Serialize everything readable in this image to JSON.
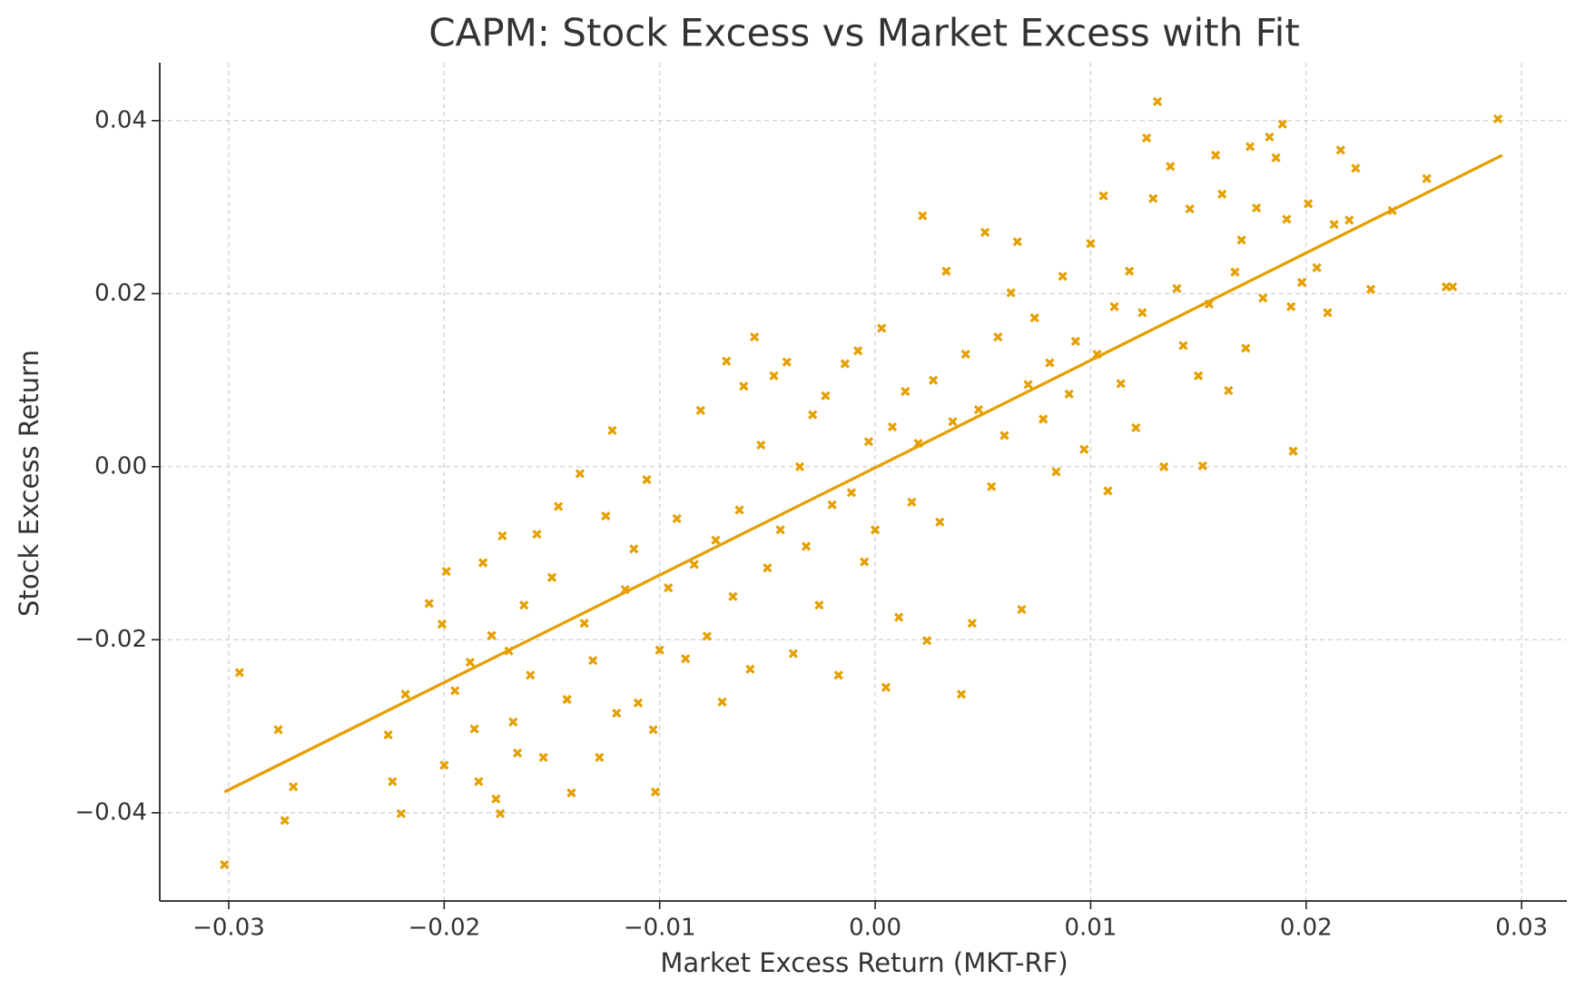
{
  "chart_data": {
    "type": "scatter",
    "title": "CAPM: Stock Excess vs Market Excess with Fit",
    "x_label": "Market Excess Return (MKT-RF)",
    "y_label": "Stock Excess Return",
    "xlim": [
      -0.0332,
      0.0321
    ],
    "ylim": [
      -0.0502,
      0.0467
    ],
    "xticks": [
      {
        "value": -0.03,
        "label": "−0.03"
      },
      {
        "value": -0.02,
        "label": "−0.02"
      },
      {
        "value": -0.01,
        "label": "−0.01"
      },
      {
        "value": 0,
        "label": "0.00"
      },
      0.01,
      0.02,
      0.03
    ],
    "yticks": [
      {
        "value": -0.04,
        "label": "−0.04"
      },
      {
        "value": -0.02,
        "label": "−0.02"
      },
      {
        "value": 0,
        "label": "0.00"
      },
      0.02,
      0.04
    ],
    "grid": true,
    "series": [
      {
        "color": "#e69f00",
        "marker": "x",
        "x": [
          -0.0302,
          -0.0295,
          -0.0277,
          -0.0274,
          -0.027,
          -0.0226,
          -0.0224,
          -0.022,
          -0.0218,
          -0.0207,
          -0.02,
          -0.0199,
          -0.0201,
          -0.0195,
          -0.0188,
          -0.0186,
          -0.0184,
          -0.0182,
          -0.0178,
          -0.0176,
          -0.0174,
          -0.0173,
          -0.017,
          -0.0168,
          -0.0166,
          -0.0163,
          -0.016,
          -0.0157,
          -0.0154,
          -0.015,
          -0.0147,
          -0.0143,
          -0.0141,
          -0.0137,
          -0.0135,
          -0.0131,
          -0.0128,
          -0.0125,
          -0.0122,
          -0.012,
          -0.0116,
          -0.0112,
          -0.011,
          -0.0106,
          -0.0103,
          -0.0102,
          -0.01,
          -0.0096,
          -0.0092,
          -0.0088,
          -0.0084,
          -0.0081,
          -0.0078,
          -0.0074,
          -0.0071,
          -0.0069,
          -0.0066,
          -0.0063,
          -0.0061,
          -0.0058,
          -0.0056,
          -0.0053,
          -0.005,
          -0.0047,
          -0.0044,
          -0.0041,
          -0.0038,
          -0.0035,
          -0.0032,
          -0.0029,
          -0.0026,
          -0.0023,
          -0.002,
          -0.0017,
          -0.0014,
          -0.0011,
          -0.0008,
          -0.0005,
          -0.0003,
          0.0,
          0.0003,
          0.0005,
          0.0008,
          0.0011,
          0.0014,
          0.0017,
          0.002,
          0.0022,
          0.0024,
          0.0027,
          0.003,
          0.0033,
          0.0036,
          0.004,
          0.0042,
          0.0045,
          0.0048,
          0.0051,
          0.0054,
          0.0057,
          0.006,
          0.0063,
          0.0066,
          0.0068,
          0.0071,
          0.0074,
          0.0078,
          0.0081,
          0.0084,
          0.0087,
          0.009,
          0.0093,
          0.0097,
          0.01,
          0.0103,
          0.0106,
          0.0108,
          0.0111,
          0.0114,
          0.0118,
          0.0121,
          0.0124,
          0.0126,
          0.0129,
          0.0131,
          0.0134,
          0.0137,
          0.014,
          0.0143,
          0.0146,
          0.015,
          0.0152,
          0.0155,
          0.0158,
          0.0161,
          0.0164,
          0.0167,
          0.017,
          0.0172,
          0.0174,
          0.0177,
          0.018,
          0.0183,
          0.0186,
          0.0189,
          0.0191,
          0.0193,
          0.0194,
          0.0198,
          0.0201,
          0.0205,
          0.021,
          0.0213,
          0.0216,
          0.022,
          0.0223,
          0.023,
          0.024,
          0.0256,
          0.0265,
          0.0268,
          0.0289
        ],
        "values": [
          -0.046,
          -0.0238,
          -0.0304,
          -0.0409,
          -0.037,
          -0.031,
          -0.0364,
          -0.0401,
          -0.0263,
          -0.0158,
          -0.0345,
          -0.0121,
          -0.0182,
          -0.0259,
          -0.0226,
          -0.0303,
          -0.0364,
          -0.0111,
          -0.0195,
          -0.0384,
          -0.0401,
          -0.008,
          -0.0213,
          -0.0295,
          -0.0331,
          -0.016,
          -0.0241,
          -0.0078,
          -0.0336,
          -0.0128,
          -0.0046,
          -0.0269,
          -0.0377,
          -0.0008,
          -0.0181,
          -0.0224,
          -0.0336,
          -0.0057,
          0.0042,
          -0.0285,
          -0.0142,
          -0.0095,
          -0.0273,
          -0.0015,
          -0.0304,
          -0.0376,
          -0.0212,
          -0.014,
          -0.006,
          -0.0222,
          -0.0113,
          0.0065,
          -0.0196,
          -0.0085,
          -0.0272,
          0.0122,
          -0.015,
          -0.005,
          0.0093,
          -0.0234,
          0.015,
          0.0025,
          -0.0117,
          0.0105,
          -0.0073,
          0.0121,
          -0.0216,
          0.0,
          -0.0092,
          0.006,
          -0.016,
          0.0082,
          -0.0044,
          -0.0241,
          0.0119,
          -0.003,
          0.0134,
          -0.011,
          0.0029,
          -0.0073,
          0.016,
          -0.0255,
          0.0046,
          -0.0174,
          0.0087,
          -0.0041,
          0.0027,
          0.029,
          -0.0201,
          0.01,
          -0.0064,
          0.0226,
          0.0052,
          -0.0263,
          0.013,
          -0.0181,
          0.0066,
          0.0271,
          -0.0023,
          0.015,
          0.0036,
          0.0201,
          0.026,
          -0.0165,
          0.0095,
          0.0172,
          0.0055,
          0.012,
          -0.0006,
          0.022,
          0.0084,
          0.0145,
          0.002,
          0.0258,
          0.013,
          0.0313,
          -0.0028,
          0.0185,
          0.0096,
          0.0226,
          0.0045,
          0.0178,
          0.038,
          0.031,
          0.0422,
          0.0,
          0.0347,
          0.0206,
          0.014,
          0.0298,
          0.0105,
          0.0001,
          0.0188,
          0.036,
          0.0315,
          0.0088,
          0.0225,
          0.0262,
          0.0137,
          0.037,
          0.0299,
          0.0195,
          0.0381,
          0.0357,
          0.0396,
          0.0286,
          0.0185,
          0.0018,
          0.0213,
          0.0304,
          0.023,
          0.0178,
          0.028,
          0.0366,
          0.0285,
          0.0345,
          0.0205,
          0.0296,
          0.0333,
          0.0208,
          0.0208,
          0.0402
        ]
      },
      {
        "color": "#e69f00",
        "marker": "line",
        "x": [
          -0.0302,
          0.0291
        ],
        "values": [
          -0.0376,
          0.036
        ]
      }
    ]
  }
}
